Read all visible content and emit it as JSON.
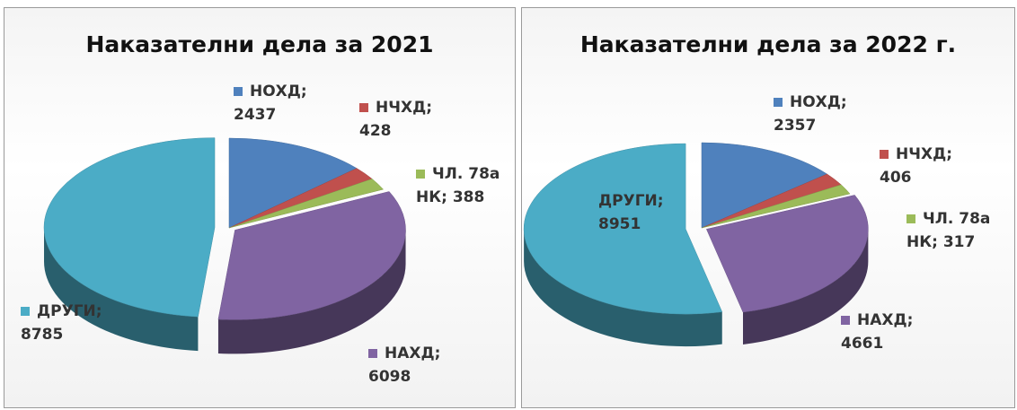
{
  "chart_data": [
    {
      "type": "pie",
      "title": "Наказателни дела за 2021",
      "categories": [
        "НОХД;",
        "НЧХД;",
        "ЧЛ. 78а НК;",
        "НАХД;",
        "ДРУГИ;"
      ],
      "values": [
        2437,
        428,
        388,
        6098,
        8785
      ],
      "colors": [
        "#4f81bd",
        "#c0504d",
        "#9bbb59",
        "#8064a2",
        "#4bacc6"
      ]
    },
    {
      "type": "pie",
      "title": "Наказателни дела за 2022 г.",
      "categories": [
        "НОХД;",
        "НЧХД;",
        "ЧЛ. 78а НК;",
        "НАХД;",
        "ДРУГИ;"
      ],
      "values": [
        2357,
        406,
        317,
        4661,
        8951
      ],
      "colors": [
        "#4f81bd",
        "#c0504d",
        "#9bbb59",
        "#8064a2",
        "#4bacc6"
      ]
    }
  ]
}
